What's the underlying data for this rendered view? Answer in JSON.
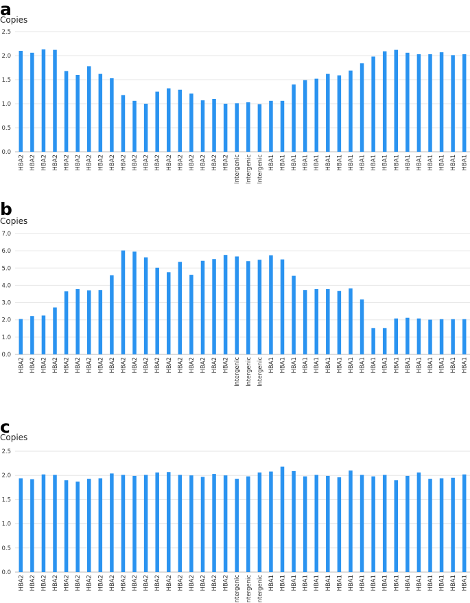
{
  "chart_data": [
    {
      "panel": "a",
      "type": "bar",
      "ylabel": "Copies",
      "ylim": [
        0,
        2.5
      ],
      "yticks": [
        "0.0",
        "0.5",
        "1.0",
        "1.5",
        "2.0",
        "2.5"
      ],
      "grid": true,
      "bar_color": "#2a93f0",
      "categories": [
        "HBA2",
        "HBA2",
        "HBA2",
        "HBA2",
        "HBA2",
        "HBA2",
        "HBA2",
        "HBA2",
        "HBA2",
        "HBA2",
        "HBA2",
        "HBA2",
        "HBA2",
        "HBA2",
        "HBA2",
        "HBA2",
        "HBA2",
        "HBA2",
        "HBA2",
        "Intergenic",
        "Intergenic",
        "Intergenic",
        "HBA1",
        "HBA1",
        "HBA1",
        "HBA1",
        "HBA1",
        "HBA1",
        "HBA1",
        "HBA1",
        "HBA1",
        "HBA1",
        "HBA1",
        "HBA1",
        "HBA1",
        "HBA1",
        "HBA1",
        "HBA1",
        "HBA1",
        "HBA1"
      ],
      "values": [
        2.1,
        2.06,
        2.13,
        2.12,
        1.68,
        1.6,
        1.78,
        1.62,
        1.53,
        1.18,
        1.06,
        1.0,
        1.25,
        1.32,
        1.29,
        1.21,
        1.07,
        1.1,
        1.0,
        1.01,
        1.03,
        0.99,
        1.06,
        1.06,
        1.4,
        1.49,
        1.52,
        1.62,
        1.59,
        1.69,
        1.84,
        1.98,
        2.09,
        2.12,
        2.06,
        2.03,
        2.03,
        2.07,
        2.01,
        2.03
      ]
    },
    {
      "panel": "b",
      "type": "bar",
      "ylabel": "Copies",
      "ylim": [
        0,
        7.0
      ],
      "yticks": [
        "0.0",
        "1.0",
        "2.0",
        "3.0",
        "4.0",
        "5.0",
        "6.0",
        "7.0"
      ],
      "grid": true,
      "bar_color": "#2a93f0",
      "categories": [
        "HBA2",
        "HBA2",
        "HBA2",
        "HBA2",
        "HBA2",
        "HBA2",
        "HBA2",
        "HBA2",
        "HBA2",
        "HBA2",
        "HBA2",
        "HBA2",
        "HBA2",
        "HBA2",
        "HBA2",
        "HBA2",
        "HBA2",
        "HBA2",
        "HBA2",
        "Intergenic",
        "Intergenic",
        "Intergenic",
        "HBA1",
        "HBA1",
        "HBA1",
        "HBA1",
        "HBA1",
        "HBA1",
        "HBA1",
        "HBA1",
        "HBA1",
        "HBA1",
        "HBA1",
        "HBA1",
        "HBA1",
        "HBA1",
        "HBA1",
        "HBA1",
        "HBA1",
        "HBA1"
      ],
      "values": [
        2.05,
        2.22,
        2.25,
        2.72,
        3.65,
        3.78,
        3.71,
        3.73,
        4.58,
        6.02,
        5.95,
        5.62,
        5.02,
        4.76,
        5.36,
        4.61,
        5.42,
        5.52,
        5.76,
        5.67,
        5.4,
        5.48,
        5.74,
        5.5,
        4.55,
        3.73,
        3.78,
        3.78,
        3.67,
        3.82,
        3.18,
        1.52,
        1.52,
        2.08,
        2.12,
        2.08,
        2.01,
        2.04,
        2.04,
        2.04
      ]
    },
    {
      "panel": "c",
      "type": "bar",
      "ylabel": "Copies",
      "ylim": [
        0,
        2.5
      ],
      "yticks": [
        "0.0",
        "0.5",
        "1.0",
        "1.5",
        "2.0",
        "2.5"
      ],
      "grid": true,
      "bar_color": "#2a93f0",
      "categories": [
        "HBA2",
        "HBA2",
        "HBA2",
        "HBA2",
        "HBA2",
        "HBA2",
        "HBA2",
        "HBA2",
        "HBA2",
        "HBA2",
        "HBA2",
        "HBA2",
        "HBA2",
        "HBA2",
        "HBA2",
        "HBA2",
        "HBA2",
        "HBA2",
        "HBA2",
        "Intergenic",
        "Intergenic",
        "Intergenic",
        "HBA1",
        "HBA1",
        "HBA1",
        "HBA1",
        "HBA1",
        "HBA1",
        "HBA1",
        "HBA1",
        "HBA1",
        "HBA1",
        "HBA1",
        "HBA1",
        "HBA1",
        "HBA1",
        "HBA1",
        "HBA1",
        "HBA1",
        "HBA1"
      ],
      "values": [
        1.94,
        1.92,
        2.02,
        2.01,
        1.9,
        1.87,
        1.93,
        1.94,
        2.04,
        2.01,
        1.99,
        2.01,
        2.06,
        2.07,
        2.01,
        2.0,
        1.97,
        2.03,
        2.0,
        1.93,
        1.98,
        2.06,
        2.08,
        2.18,
        2.09,
        1.98,
        2.01,
        1.99,
        1.96,
        2.1,
        2.01,
        1.98,
        2.01,
        1.9,
        1.99,
        2.06,
        1.93,
        1.94,
        1.95,
        2.02
      ]
    }
  ]
}
